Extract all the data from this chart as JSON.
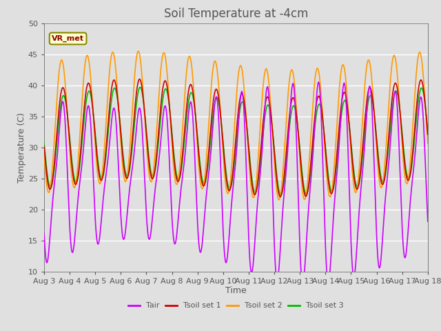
{
  "title": "Soil Temperature at -4cm",
  "xlabel": "Time",
  "ylabel": "Temperature (C)",
  "ylim": [
    10,
    50
  ],
  "yticks": [
    10,
    15,
    20,
    25,
    30,
    35,
    40,
    45,
    50
  ],
  "n_days": 15,
  "xtick_labels": [
    "Aug 3",
    "Aug 4",
    "Aug 5",
    "Aug 6",
    "Aug 7",
    "Aug 8",
    "Aug 9",
    "Aug 10",
    "Aug 11",
    "Aug 12",
    "Aug 13",
    "Aug 14",
    "Aug 15",
    "Aug 16",
    "Aug 17",
    "Aug 18"
  ],
  "colors": {
    "Tair": "#cc00ff",
    "Tsoil1": "#cc0000",
    "Tsoil2": "#ff9900",
    "Tsoil3": "#00bb00"
  },
  "annotation_text": "VR_met",
  "background_color": "#e0e0e0",
  "grid_color": "#ffffff",
  "linewidth": 1.2,
  "font_color": "#555555",
  "title_fontsize": 12,
  "axis_label_fontsize": 9,
  "tick_fontsize": 8
}
